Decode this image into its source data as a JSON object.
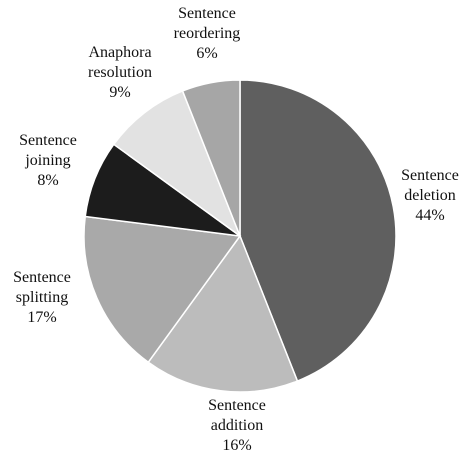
{
  "chart_data": {
    "type": "pie",
    "categories": [
      "Sentence deletion",
      "Sentence addition",
      "Sentence splitting",
      "Sentence joining",
      "Anaphora resolution",
      "Sentence reordering"
    ],
    "values": [
      44,
      16,
      17,
      8,
      9,
      6
    ],
    "value_labels": [
      "44%",
      "16%",
      "17%",
      "8%",
      "9%",
      "6%"
    ],
    "colors": [
      "#5f5f5f",
      "#bcbcbc",
      "#a9a9a9",
      "#1c1c1c",
      "#e2e2e2",
      "#a6a6a6"
    ]
  }
}
